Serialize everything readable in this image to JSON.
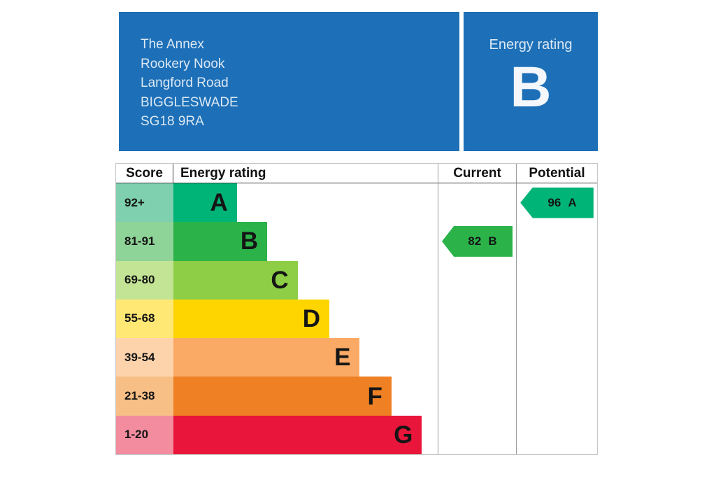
{
  "header": {
    "address_lines": [
      "The Annex",
      "Rookery Nook",
      "Langford Road",
      "BIGGLESWADE",
      "SG18 9RA"
    ],
    "rating_panel": {
      "label": "Energy rating",
      "value": "B"
    },
    "background_color": "#1d70b8"
  },
  "table_headers": {
    "score": "Score",
    "energy_rating": "Energy rating",
    "current": "Current",
    "potential": "Potential"
  },
  "chart_data": {
    "type": "bar",
    "title": "Energy efficiency rating chart",
    "bands": [
      {
        "score_range": "92+",
        "letter": "A",
        "bar_color": "#00b377",
        "score_bg": "#7fd0ae",
        "width_pct": 24
      },
      {
        "score_range": "81-91",
        "letter": "B",
        "bar_color": "#2bb34a",
        "score_bg": "#8ed397",
        "width_pct": 35.5
      },
      {
        "score_range": "69-80",
        "letter": "C",
        "bar_color": "#8dce46",
        "score_bg": "#c2e494",
        "width_pct": 47
      },
      {
        "score_range": "55-68",
        "letter": "D",
        "bar_color": "#ffd500",
        "score_bg": "#ffe873",
        "width_pct": 59
      },
      {
        "score_range": "39-54",
        "letter": "E",
        "bar_color": "#fbaa65",
        "score_bg": "#fdd3ac",
        "width_pct": 70.5
      },
      {
        "score_range": "21-38",
        "letter": "F",
        "bar_color": "#ef8023",
        "score_bg": "#f7bf86",
        "width_pct": 82.5
      },
      {
        "score_range": "1-20",
        "letter": "G",
        "bar_color": "#e9153b",
        "score_bg": "#f28c9e",
        "width_pct": 94
      }
    ],
    "current": {
      "value": "82",
      "letter": "B",
      "band_index": 1,
      "color": "#2bb34a"
    },
    "potential": {
      "value": "96",
      "letter": "A",
      "band_index": 0,
      "color": "#00b377"
    }
  }
}
